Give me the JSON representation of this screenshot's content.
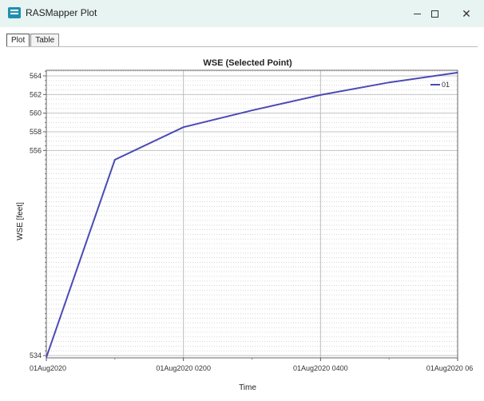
{
  "window": {
    "title": "RASMapper Plot",
    "icon": "rasmapper-app-icon",
    "close_glyph": "✕"
  },
  "tabs": [
    {
      "label": "Plot",
      "active": true
    },
    {
      "label": "Table",
      "active": false
    }
  ],
  "colors": {
    "series": "#4a4ab5",
    "titlebar": "#e8f4f2"
  },
  "chart_data": {
    "type": "line",
    "title": "WSE (Selected Point)",
    "xlabel": "Time",
    "ylabel": "WSE [feet]",
    "x_ticks": [
      "01Aug2020",
      "01Aug2020 0200",
      "01Aug2020 0400",
      "01Aug2020 06"
    ],
    "x_hours": [
      0,
      1,
      2,
      3,
      4,
      5,
      6
    ],
    "xlim_hours": [
      0,
      6
    ],
    "ylim": [
      533.75,
      564.6
    ],
    "y_ticks": [
      534,
      556,
      558,
      560,
      562,
      564
    ],
    "grid": true,
    "legend_position": "top-right",
    "series": [
      {
        "name": "01",
        "values": [
          533.8,
          555.0,
          558.5,
          560.3,
          561.95,
          563.3,
          564.35
        ]
      }
    ]
  }
}
